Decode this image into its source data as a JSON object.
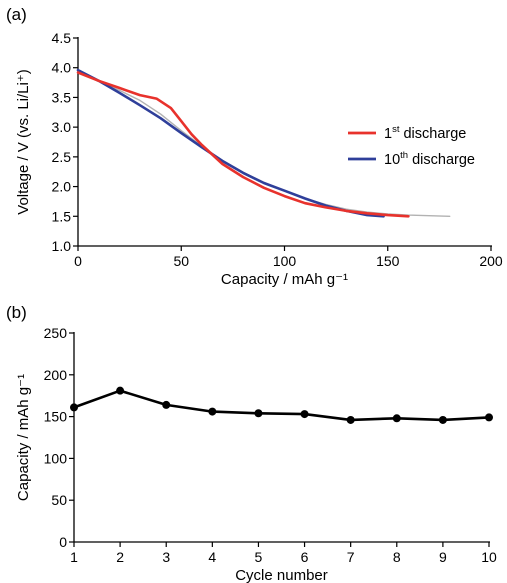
{
  "chart_data": [
    {
      "panel": "(a)",
      "type": "line",
      "title": "",
      "xlabel": "Capacity / mAh g⁻¹",
      "ylabel": "Voltage / V (vs. Li/Li⁺)",
      "xlim": [
        0,
        200
      ],
      "ylim": [
        1.0,
        4.5
      ],
      "xticks": [
        "0",
        "50",
        "100",
        "150",
        "200"
      ],
      "yticks": [
        "1.0",
        "1.5",
        "2.0",
        "2.5",
        "3.0",
        "3.5",
        "4.0",
        "4.5"
      ],
      "grid": false,
      "legend_position": "right",
      "series": [
        {
          "name": "1st discharge",
          "legend_main": "1",
          "legend_sup": "st",
          "legend_rest": " discharge",
          "color": "#e8322c",
          "x": [
            0,
            10,
            20,
            30,
            38,
            45,
            50,
            55,
            60,
            70,
            80,
            90,
            100,
            110,
            120,
            130,
            140,
            150,
            160
          ],
          "y": [
            3.92,
            3.78,
            3.66,
            3.54,
            3.48,
            3.32,
            3.1,
            2.88,
            2.7,
            2.38,
            2.16,
            1.98,
            1.84,
            1.72,
            1.65,
            1.59,
            1.55,
            1.52,
            1.5
          ]
        },
        {
          "name": "10th discharge",
          "legend_main": "10",
          "legend_sup": "th",
          "legend_rest": " discharge",
          "color": "#2f3f9a",
          "x": [
            0,
            10,
            20,
            30,
            40,
            50,
            60,
            70,
            80,
            90,
            100,
            110,
            120,
            130,
            140,
            148
          ],
          "y": [
            3.96,
            3.78,
            3.58,
            3.37,
            3.15,
            2.9,
            2.66,
            2.43,
            2.23,
            2.06,
            1.93,
            1.8,
            1.68,
            1.59,
            1.52,
            1.5
          ]
        },
        {
          "name": "",
          "color": "#b2b2b2",
          "x": [
            0,
            10,
            20,
            30,
            40,
            50,
            60,
            70,
            80,
            90,
            100,
            110,
            120,
            130,
            140,
            150,
            160,
            170,
            180
          ],
          "y": [
            3.93,
            3.77,
            3.62,
            3.45,
            3.22,
            2.94,
            2.68,
            2.44,
            2.24,
            2.07,
            1.93,
            1.8,
            1.7,
            1.62,
            1.57,
            1.54,
            1.52,
            1.51,
            1.5
          ]
        }
      ]
    },
    {
      "panel": "(b)",
      "type": "line",
      "title": "",
      "xlabel": "Cycle number",
      "ylabel": "Capacity / mAh g⁻¹",
      "xlim": [
        1,
        10
      ],
      "ylim": [
        0,
        250
      ],
      "xticks": [
        "1",
        "2",
        "3",
        "4",
        "5",
        "6",
        "7",
        "8",
        "9",
        "10"
      ],
      "yticks": [
        "0",
        "50",
        "100",
        "150",
        "200",
        "250"
      ],
      "grid": false,
      "markers": true,
      "series": [
        {
          "name": "",
          "color": "#000000",
          "x": [
            1,
            2,
            3,
            4,
            5,
            6,
            7,
            8,
            9,
            10
          ],
          "y": [
            161,
            181,
            164,
            156,
            154,
            153,
            146,
            148,
            146,
            149
          ]
        }
      ]
    }
  ]
}
